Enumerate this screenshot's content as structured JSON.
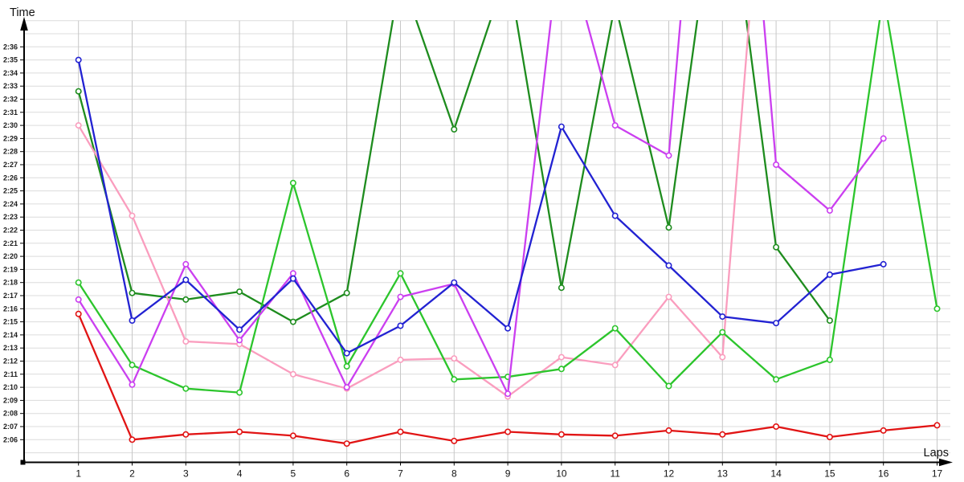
{
  "chart_data": {
    "type": "line",
    "title": "",
    "xlabel": "Laps",
    "ylabel": "Time",
    "grid": true,
    "legend": "none",
    "x_range_laps": [
      1,
      17
    ],
    "y_axis_seconds_range": [
      126,
      156
    ],
    "x_ticks": [
      1,
      2,
      3,
      4,
      5,
      6,
      7,
      8,
      9,
      10,
      11,
      12,
      13,
      14,
      15,
      16,
      17
    ],
    "y_ticks": [
      "2:06",
      "2:07",
      "2:08",
      "2:09",
      "2:10",
      "2:11",
      "2:12",
      "2:13",
      "2:14",
      "2:15",
      "2:16",
      "2:17",
      "2:18",
      "2:19",
      "2:20",
      "2:21",
      "2:22",
      "2:23",
      "2:24",
      "2:25",
      "2:26",
      "2:27",
      "2:28",
      "2:29",
      "2:30",
      "2:31",
      "2:32",
      "2:33",
      "2:34",
      "2:35",
      "2:36"
    ],
    "note_values_are_lap_times_in_seconds": "values above 158s are clipped above the visible plot top",
    "series": [
      {
        "name": "dark-green-line",
        "color": "#1e8c1e",
        "values_sec": [
          152.6,
          137.2,
          136.7,
          137.3,
          135.0,
          137.2,
          161.5,
          149.7,
          162.0,
          137.6,
          159.3,
          142.2,
          172.0,
          140.7,
          135.1,
          null,
          null
        ]
      },
      {
        "name": "pink-line",
        "color": "#fa9dbe",
        "values_sec": [
          150.0,
          143.1,
          133.5,
          133.3,
          131.0,
          129.9,
          132.1,
          132.2,
          129.3,
          132.3,
          131.7,
          136.9,
          132.3,
          184.0,
          null,
          null,
          null
        ]
      },
      {
        "name": "bright-green-line",
        "color": "#2cc52c",
        "values_sec": [
          138.0,
          131.7,
          129.9,
          129.6,
          145.6,
          131.6,
          138.7,
          130.6,
          130.8,
          131.4,
          134.5,
          130.1,
          134.2,
          130.6,
          132.1,
          160.0,
          136.0
        ]
      },
      {
        "name": "magenta-line",
        "color": "#cb3ff0",
        "values_sec": [
          136.7,
          130.2,
          139.4,
          133.6,
          138.7,
          130.0,
          136.9,
          137.9,
          129.5,
          165.0,
          150.0,
          147.7,
          195.0,
          147.0,
          143.5,
          149.0,
          null
        ]
      },
      {
        "name": "blue-line",
        "color": "#2222d2",
        "values_sec": [
          155.0,
          135.1,
          138.2,
          134.4,
          138.3,
          132.6,
          134.7,
          138.0,
          134.5,
          149.9,
          143.1,
          139.3,
          135.4,
          134.9,
          138.6,
          139.4,
          null
        ]
      },
      {
        "name": "red-line",
        "color": "#e11414",
        "values_sec": [
          135.6,
          126.0,
          126.4,
          126.6,
          126.3,
          125.7,
          126.6,
          125.9,
          126.6,
          126.4,
          126.3,
          126.7,
          126.4,
          127.0,
          126.2,
          126.7,
          127.1
        ]
      }
    ],
    "style": {
      "grid_vertical_color": "#c7c7c7",
      "grid_horizontal_color": "#dcdcdc",
      "axis_color": "#000000",
      "marker_fill": "#ffffff"
    }
  }
}
